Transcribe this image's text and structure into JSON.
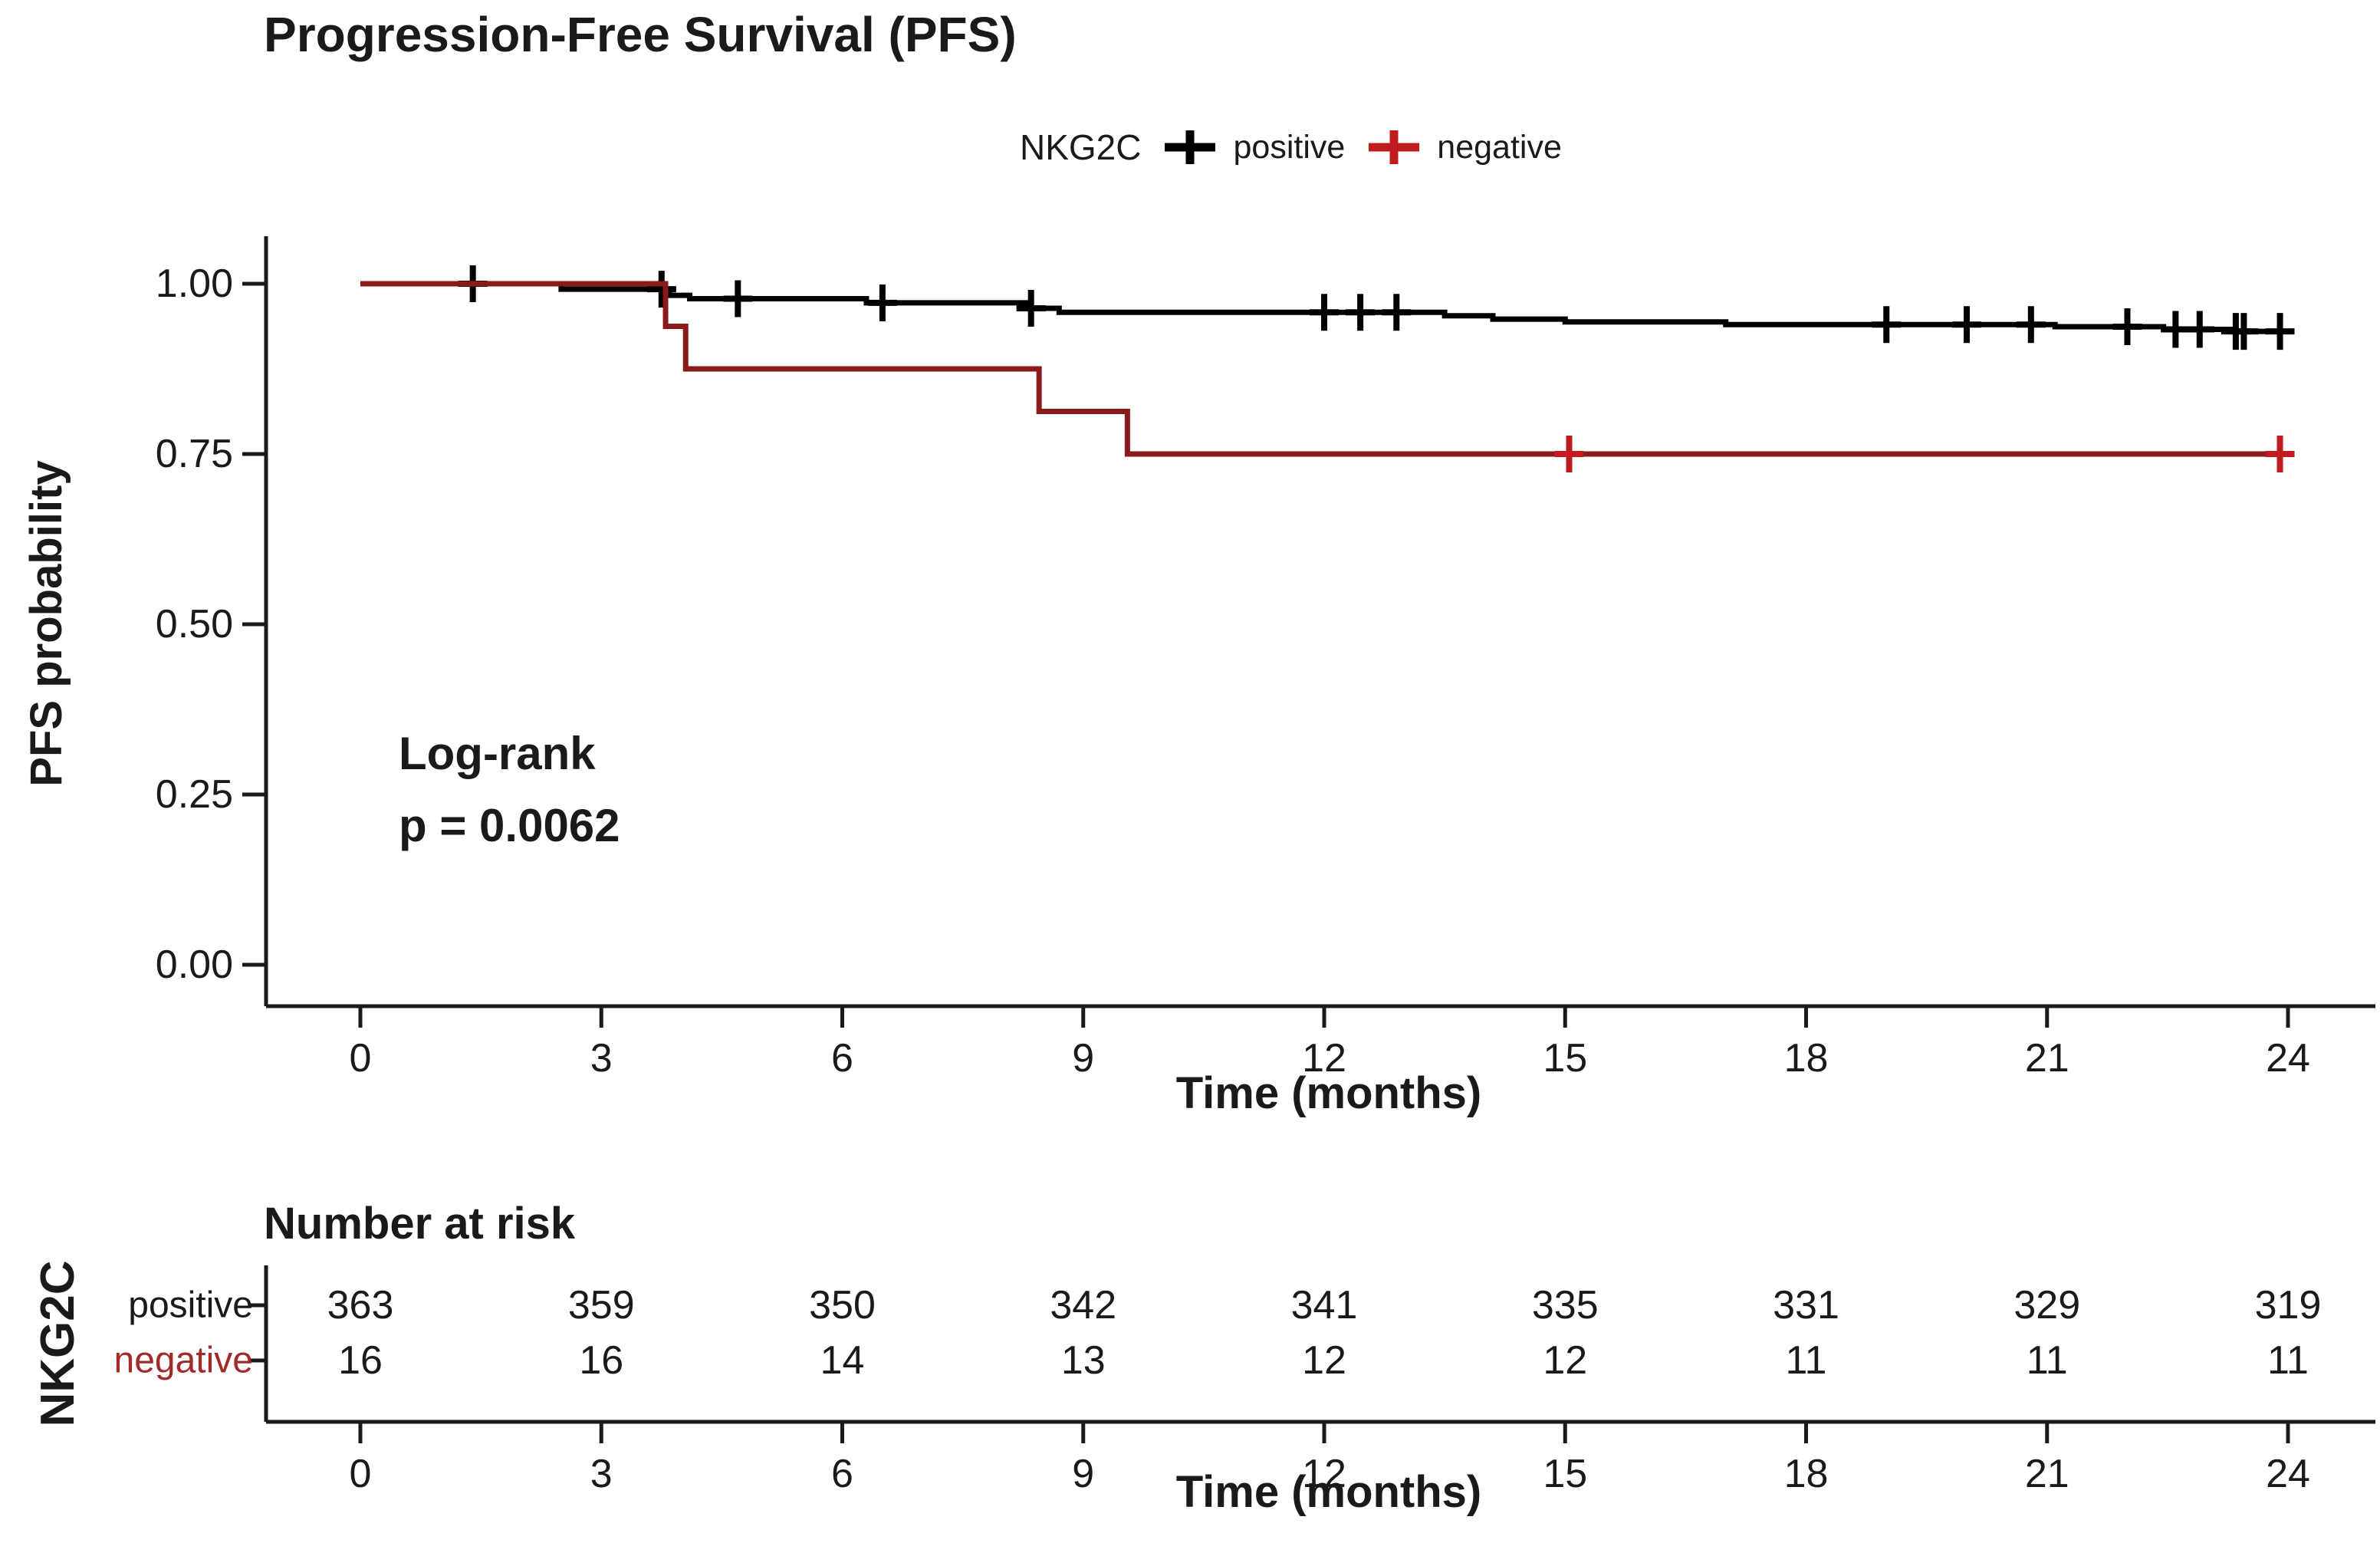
{
  "title": "Progression-Free Survival (PFS)",
  "legend": {
    "group_label": "NKG2C",
    "items": [
      {
        "label": "positive",
        "color": "#000000"
      },
      {
        "label": "negative",
        "color": "#C01B20"
      }
    ]
  },
  "annotation": {
    "line1": "Log-rank",
    "line2": "p = 0.0062"
  },
  "axes": {
    "xlabel": "Time (months)",
    "ylabel": "PFS probability"
  },
  "chart_data": {
    "type": "line",
    "subtype": "kaplan-meier-step",
    "title": "Progression-Free Survival (PFS)",
    "xlabel": "Time (months)",
    "ylabel": "PFS probability",
    "xlim": [
      0,
      24
    ],
    "ylim": [
      0.0,
      1.0
    ],
    "x_ticks": [
      0,
      3,
      6,
      9,
      12,
      15,
      18,
      21,
      24
    ],
    "y_ticks": [
      {
        "value": 1.0,
        "label": "1.00"
      },
      {
        "value": 0.75,
        "label": "0.75"
      },
      {
        "value": 0.5,
        "label": "0.50"
      },
      {
        "value": 0.25,
        "label": "0.25"
      },
      {
        "value": 0.0,
        "label": "0.00"
      }
    ],
    "series": [
      {
        "name": "positive",
        "color": "#000000",
        "censor_color": "#000000",
        "start": [
          0,
          1.0
        ],
        "drops": [
          [
            2.5,
            0.992
          ],
          [
            3.85,
            0.983
          ],
          [
            4.1,
            0.978
          ],
          [
            6.3,
            0.972
          ],
          [
            8.3,
            0.964
          ],
          [
            8.7,
            0.958
          ],
          [
            13.5,
            0.953
          ],
          [
            14.1,
            0.948
          ],
          [
            15.0,
            0.944
          ],
          [
            17.0,
            0.94
          ],
          [
            21.1,
            0.937
          ],
          [
            22.45,
            0.933
          ],
          [
            23.3,
            0.93
          ]
        ],
        "end_x": 23.95,
        "censors": [
          [
            1.4,
            1.0
          ],
          [
            3.75,
            0.992
          ],
          [
            4.7,
            0.978
          ],
          [
            6.5,
            0.972
          ],
          [
            8.35,
            0.964
          ],
          [
            12.0,
            0.958
          ],
          [
            12.45,
            0.958
          ],
          [
            12.9,
            0.958
          ],
          [
            19.0,
            0.94
          ],
          [
            20.0,
            0.94
          ],
          [
            20.8,
            0.94
          ],
          [
            22.0,
            0.937
          ],
          [
            22.6,
            0.933
          ],
          [
            22.9,
            0.933
          ],
          [
            23.35,
            0.93
          ],
          [
            23.45,
            0.93
          ],
          [
            23.9,
            0.93
          ]
        ]
      },
      {
        "name": "negative",
        "color": "#8B1A1A",
        "censor_color": "#C01B20",
        "start": [
          0,
          1.0
        ],
        "drops": [
          [
            3.8,
            0.9375
          ],
          [
            4.05,
            0.875
          ],
          [
            8.45,
            0.8125
          ],
          [
            9.55,
            0.75
          ]
        ],
        "end_x": 24.0,
        "censors": [
          [
            15.05,
            0.75
          ],
          [
            23.9,
            0.75
          ]
        ]
      }
    ],
    "annotation": {
      "line1": "Log-rank",
      "line2": "p = 0.0062"
    },
    "risk_table": {
      "heading": "Number at risk",
      "group_label": "NKG2C",
      "xlabel": "Time (months)",
      "time_ticks": [
        0,
        3,
        6,
        9,
        12,
        15,
        18,
        21,
        24
      ],
      "rows": [
        {
          "label": "positive",
          "label_color": "#1a1a1a",
          "values": [
            363,
            359,
            350,
            342,
            341,
            335,
            331,
            329,
            319
          ]
        },
        {
          "label": "negative",
          "label_color": "#A32A2A",
          "values": [
            16,
            16,
            14,
            13,
            12,
            12,
            11,
            11,
            11
          ]
        }
      ]
    }
  }
}
